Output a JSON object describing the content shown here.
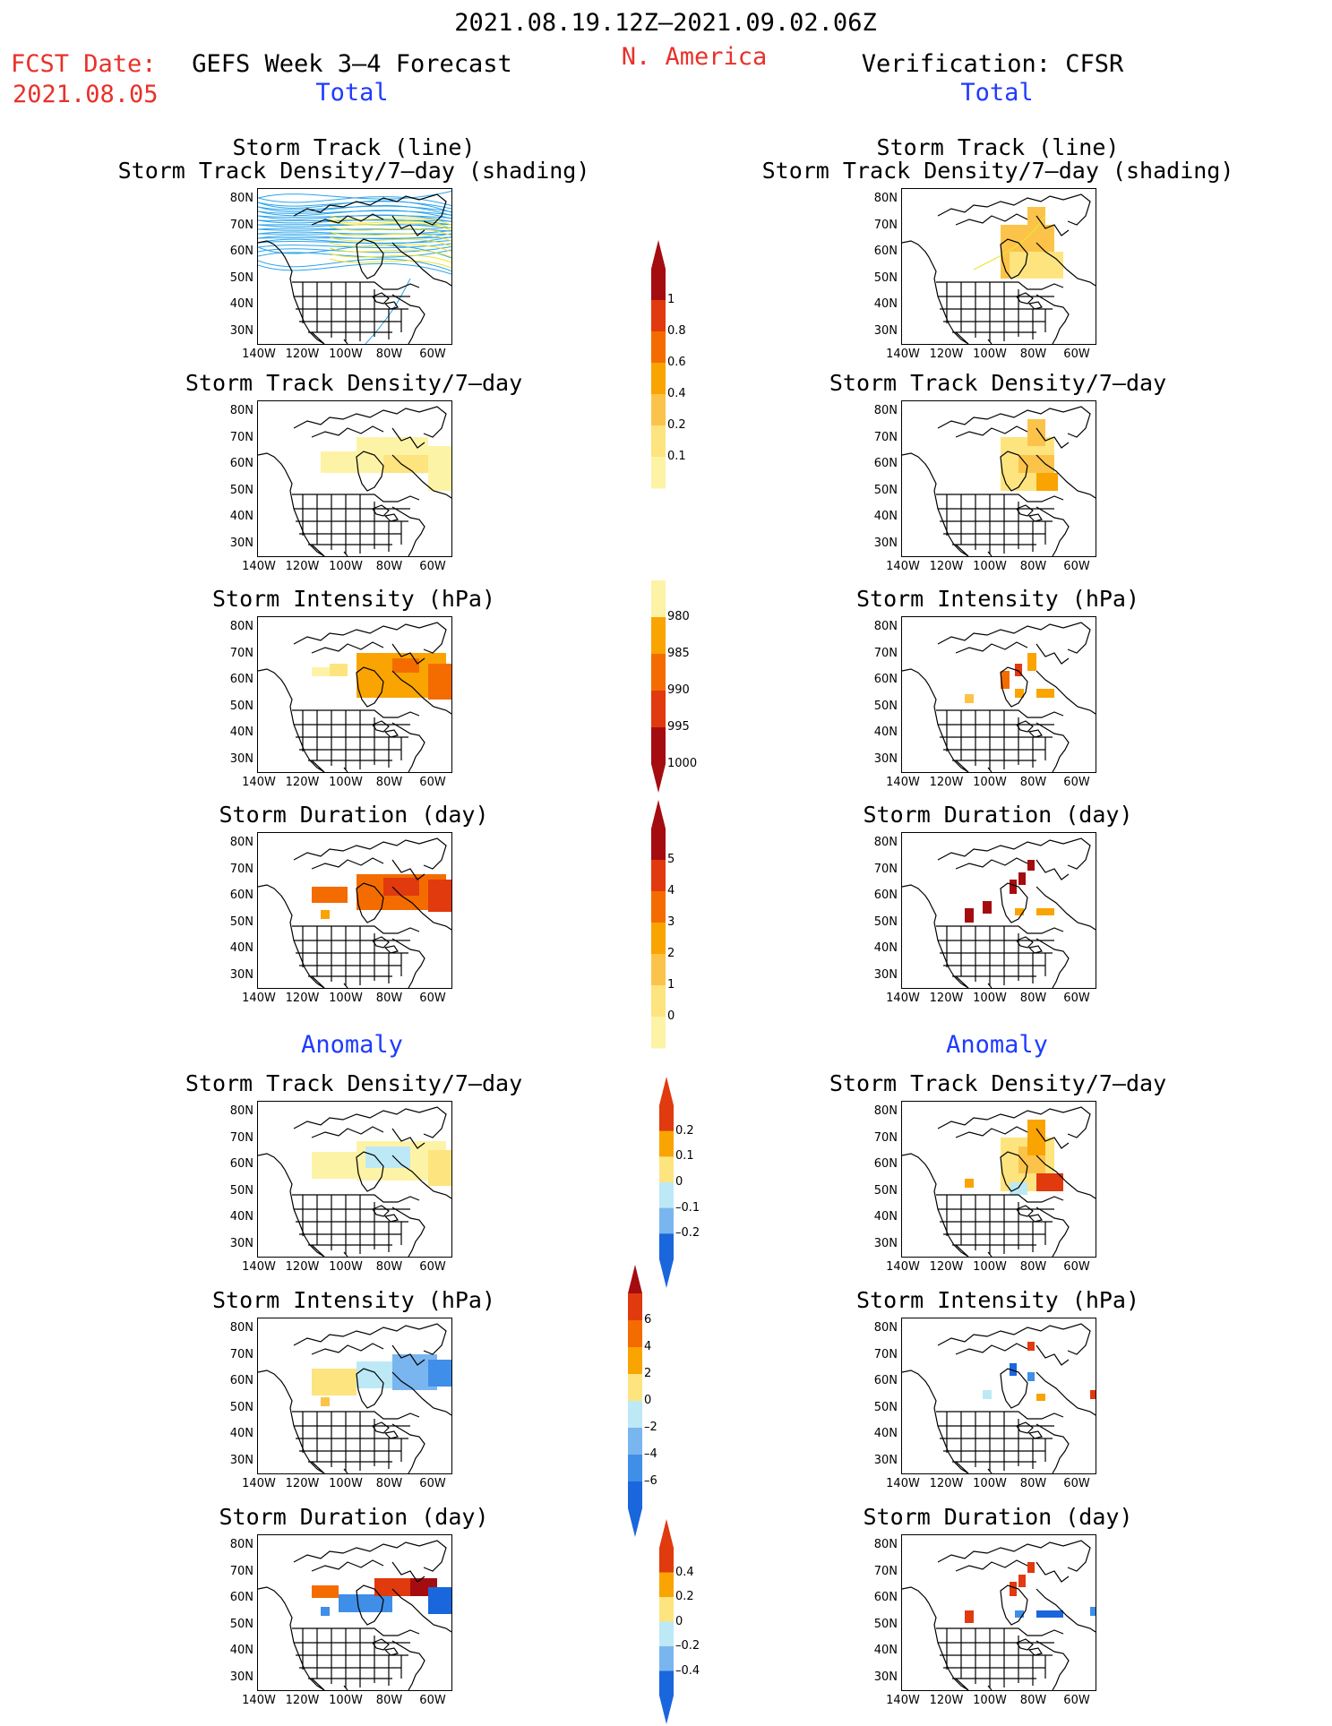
{
  "header": {
    "date_range": "2021.08.19.12Z–2021.09.02.06Z",
    "fcst_label": "FCST Date:",
    "fcst_date": "2021.08.05",
    "forecast_title": "GEFS Week 3–4 Forecast",
    "region": "N. America",
    "verification": "Verification: CFSR"
  },
  "sections": {
    "total": "Total",
    "anomaly": "Anomaly"
  },
  "panel_titles": {
    "track_line": "Storm Track (line)",
    "track_density_shading": "Storm Track Density/7–day (shading)",
    "density": "Storm Track Density/7–day",
    "intensity": "Storm Intensity (hPa)",
    "duration": "Storm Duration (day)"
  },
  "axes": {
    "lat_ticks": [
      "80N",
      "70N",
      "60N",
      "50N",
      "40N",
      "30N"
    ],
    "lon_ticks": [
      "140W",
      "120W",
      "100W",
      "80W",
      "60W"
    ]
  },
  "colorbars": {
    "density_total": [
      "0.1",
      "0.2",
      "0.4",
      "0.6",
      "0.8",
      "1"
    ],
    "intensity_total": [
      "1000",
      "995",
      "990",
      "985",
      "980"
    ],
    "duration_total": [
      "0",
      "1",
      "2",
      "3",
      "4",
      "5"
    ],
    "density_anom": [
      "0.2",
      "0.1",
      "0",
      "–0.1",
      "–0.2"
    ],
    "intensity_anom": [
      "6",
      "4",
      "2",
      "0",
      "–2",
      "–4",
      "–6"
    ],
    "duration_anom": [
      "0.4",
      "0.2",
      "0",
      "–0.2",
      "–0.4"
    ]
  },
  "colors": {
    "title_red": "#e8312a",
    "title_blue": "#1f3bff",
    "pale_yellow": "#fdf3a6",
    "yellow": "#fde47f",
    "light_orange": "#fcc34a",
    "orange": "#f9a400",
    "dark_orange": "#f46c00",
    "red": "#e03a0e",
    "dark_red": "#a50c10",
    "light_blue": "#bde9f6",
    "mid_blue": "#79b6f0",
    "blue": "#3f8ee8",
    "dark_blue": "#1a66dd",
    "track_blue": "#2aa4ea",
    "track_yellow": "#f2e32a"
  }
}
